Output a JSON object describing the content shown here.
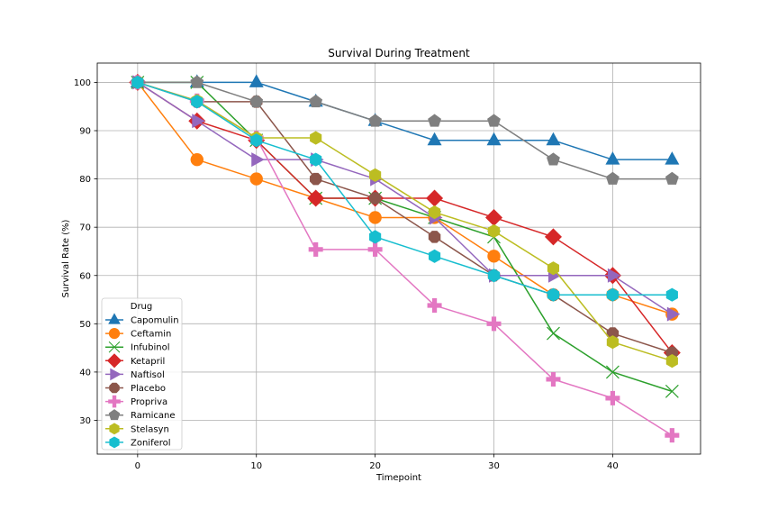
{
  "chart_data": {
    "type": "line",
    "title": "Survival During Treatment",
    "xlabel": "Timepoint",
    "ylabel": "Survival Rate (%)",
    "xlim": [
      -3.4,
      47.4
    ],
    "ylim": [
      23,
      104
    ],
    "xticks": [
      0,
      10,
      20,
      30,
      40
    ],
    "yticks": [
      30,
      40,
      50,
      60,
      70,
      80,
      90,
      100
    ],
    "grid": true,
    "legend": {
      "title": "Drug",
      "placement": "lower-left"
    },
    "x": [
      0,
      5,
      10,
      15,
      20,
      25,
      30,
      35,
      40,
      45
    ],
    "series": [
      {
        "name": "Capomulin",
        "color": "#1f77b4",
        "marker": "triangle-up",
        "values": [
          100,
          100,
          100,
          96,
          92,
          88,
          88,
          88,
          84,
          84
        ]
      },
      {
        "name": "Ceftamin",
        "color": "#ff7f0e",
        "marker": "circle",
        "values": [
          100,
          84,
          80,
          76,
          72,
          72,
          64,
          56,
          56,
          52
        ]
      },
      {
        "name": "Infubinol",
        "color": "#2ca02c",
        "marker": "x",
        "values": [
          100,
          100,
          88,
          76,
          76,
          72,
          68,
          48,
          40,
          36
        ]
      },
      {
        "name": "Ketapril",
        "color": "#d62728",
        "marker": "diamond",
        "values": [
          100,
          92,
          88,
          76,
          76,
          76,
          72,
          68,
          60,
          44
        ]
      },
      {
        "name": "Naftisol",
        "color": "#9467bd",
        "marker": "triangle-right",
        "values": [
          100,
          92,
          84,
          84,
          80,
          72,
          60,
          60,
          60,
          52
        ]
      },
      {
        "name": "Placebo",
        "color": "#8c564b",
        "marker": "octagon",
        "values": [
          100,
          96,
          96,
          80,
          76,
          68,
          60,
          56,
          48,
          44
        ]
      },
      {
        "name": "Propriva",
        "color": "#e377c2",
        "marker": "plus",
        "values": [
          100,
          96.2,
          88.5,
          65.4,
          65.4,
          53.8,
          50,
          38.5,
          34.6,
          26.9
        ]
      },
      {
        "name": "Ramicane",
        "color": "#7f7f7f",
        "marker": "pentagon",
        "values": [
          100,
          100,
          96,
          96,
          92,
          92,
          92,
          84,
          80,
          80
        ]
      },
      {
        "name": "Stelasyn",
        "color": "#bcbd22",
        "marker": "hexagon",
        "values": [
          100,
          96.2,
          88.5,
          88.5,
          80.8,
          73.1,
          69.2,
          61.5,
          46.2,
          42.3
        ]
      },
      {
        "name": "Zoniferol",
        "color": "#17becf",
        "marker": "hexagon",
        "values": [
          100,
          96,
          88,
          84,
          68,
          64,
          60,
          56,
          56,
          56
        ]
      }
    ]
  }
}
